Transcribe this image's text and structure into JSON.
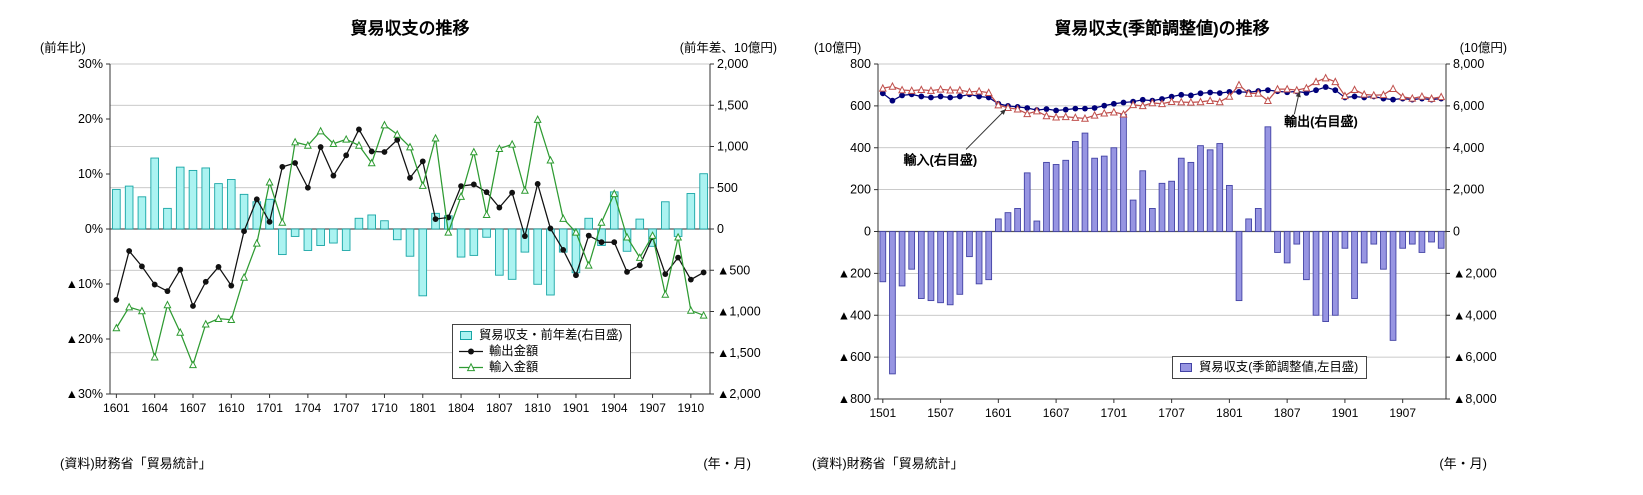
{
  "chart_data": [
    {
      "type": "bar",
      "subtype": "combo-bar-line-dual-axis",
      "title": "貿易収支の推移",
      "source": "(資料)財務省「貿易統計」",
      "x_axis_note": "(年・月)",
      "x_tick_every": 3,
      "grid_axis": "right",
      "left_axis": {
        "label": "(前年比)",
        "min": -30,
        "max": 30,
        "tick_values": [
          30,
          20,
          10,
          0,
          -10,
          -20,
          -30
        ],
        "tick_labels": [
          "30%",
          "20%",
          "10%",
          "0%",
          "▲10%",
          "▲20%",
          "▲30%"
        ]
      },
      "right_axis": {
        "label": "(前年差、10億円)",
        "min": -2000,
        "max": 2000,
        "tick_values": [
          2000,
          1500,
          1000,
          500,
          0,
          -500,
          -1000,
          -1500,
          -2000
        ],
        "tick_labels": [
          "2,000",
          "1,500",
          "1,000",
          "500",
          "0",
          "▲500",
          "▲1,000",
          "▲1,500",
          "▲2,000"
        ]
      },
      "categories": [
        "1601",
        "1602",
        "1603",
        "1604",
        "1605",
        "1606",
        "1607",
        "1608",
        "1609",
        "1610",
        "1611",
        "1612",
        "1701",
        "1702",
        "1703",
        "1704",
        "1705",
        "1706",
        "1707",
        "1708",
        "1709",
        "1710",
        "1711",
        "1712",
        "1801",
        "1802",
        "1803",
        "1804",
        "1805",
        "1806",
        "1807",
        "1808",
        "1809",
        "1810",
        "1811",
        "1812",
        "1901",
        "1902",
        "1903",
        "1904",
        "1905",
        "1906",
        "1907",
        "1908",
        "1909",
        "1910",
        "1911"
      ],
      "series": [
        {
          "id": "balance-diff",
          "name": "貿易収支・前年差(右目盛)",
          "type": "bar",
          "axis": "right",
          "fill": "#abf3f1",
          "stroke": "#18a5a5",
          "values": [
            480,
            520,
            390,
            860,
            250,
            750,
            710,
            740,
            550,
            600,
            420,
            330,
            360,
            -310,
            -90,
            -260,
            -200,
            -170,
            -260,
            130,
            170,
            100,
            -130,
            -330,
            -810,
            190,
            160,
            -340,
            -320,
            -100,
            -560,
            -610,
            -280,
            -670,
            -800,
            -280,
            -530,
            130,
            -200,
            450,
            -270,
            120,
            -210,
            330,
            -90,
            430,
            670
          ]
        },
        {
          "id": "exports",
          "name": "輸出金額",
          "type": "line",
          "axis": "left",
          "color": "#111111",
          "marker": "circle",
          "values": [
            -12.9,
            -4.0,
            -6.8,
            -10.1,
            -11.3,
            -7.4,
            -14.0,
            -9.6,
            -6.9,
            -10.3,
            -0.4,
            5.4,
            1.3,
            11.3,
            12.0,
            7.5,
            14.9,
            9.7,
            13.4,
            18.1,
            14.1,
            14.0,
            16.2,
            9.3,
            12.3,
            1.8,
            2.1,
            7.8,
            8.1,
            6.7,
            3.9,
            6.6,
            -1.3,
            8.2,
            0.1,
            -3.8,
            -8.4,
            -1.2,
            -2.4,
            -2.4,
            -7.8,
            -6.6,
            -1.5,
            -8.2,
            -5.2,
            -9.2,
            -7.9
          ]
        },
        {
          "id": "imports",
          "name": "輸入金額",
          "type": "line",
          "axis": "left",
          "color": "#2e9b32",
          "marker": "triangle",
          "values": [
            -18.0,
            -14.2,
            -14.9,
            -23.3,
            -13.8,
            -18.8,
            -24.7,
            -17.3,
            -16.3,
            -16.5,
            -8.8,
            -2.6,
            8.5,
            1.2,
            15.8,
            15.2,
            17.8,
            15.5,
            16.3,
            15.2,
            12.0,
            18.9,
            17.2,
            14.9,
            7.9,
            16.5,
            -0.6,
            5.9,
            14.0,
            2.6,
            14.6,
            15.4,
            7.0,
            19.9,
            12.5,
            1.9,
            -0.6,
            -6.6,
            1.2,
            6.4,
            -1.5,
            -5.2,
            -1.2,
            -11.9,
            -1.5,
            -14.8,
            -15.7
          ]
        }
      ]
    },
    {
      "type": "bar",
      "subtype": "combo-bar-line-dual-axis",
      "title": "貿易収支(季節調整値)の推移",
      "source": "(資料)財務省「貿易統計」",
      "x_axis_note": "(年・月)",
      "x_tick_every": 6,
      "grid_axis": "left",
      "left_axis": {
        "label": "(10億円)",
        "min": -800,
        "max": 800,
        "tick_values": [
          800,
          600,
          400,
          200,
          0,
          -200,
          -400,
          -600,
          -800
        ],
        "tick_labels": [
          "800",
          "600",
          "400",
          "200",
          "0",
          "▲200",
          "▲400",
          "▲600",
          "▲800"
        ]
      },
      "right_axis": {
        "label": "(10億円)",
        "min": -8000,
        "max": 8000,
        "tick_values": [
          8000,
          6000,
          4000,
          2000,
          0,
          -2000,
          -4000,
          -6000,
          -8000
        ],
        "tick_labels": [
          "8,000",
          "6,000",
          "4,000",
          "2,000",
          "0",
          "▲2,000",
          "▲4,000",
          "▲6,000",
          "▲8,000"
        ]
      },
      "categories": [
        "1501",
        "1502",
        "1503",
        "1504",
        "1505",
        "1506",
        "1507",
        "1508",
        "1509",
        "1510",
        "1511",
        "1512",
        "1601",
        "1602",
        "1603",
        "1604",
        "1605",
        "1606",
        "1607",
        "1608",
        "1609",
        "1610",
        "1611",
        "1612",
        "1701",
        "1702",
        "1703",
        "1704",
        "1705",
        "1706",
        "1707",
        "1708",
        "1709",
        "1710",
        "1711",
        "1712",
        "1801",
        "1802",
        "1803",
        "1804",
        "1805",
        "1806",
        "1807",
        "1808",
        "1809",
        "1810",
        "1811",
        "1812",
        "1901",
        "1902",
        "1903",
        "1904",
        "1905",
        "1906",
        "1907",
        "1908",
        "1909",
        "1910",
        "1911"
      ],
      "series": [
        {
          "id": "balance-sa",
          "name": "貿易収支(季節調整値,左目盛)",
          "type": "bar",
          "axis": "left",
          "fill": "#9795e2",
          "stroke": "#4343a5",
          "values": [
            -240,
            -680,
            -260,
            -180,
            -320,
            -330,
            -340,
            -350,
            -300,
            -120,
            -250,
            -230,
            60,
            90,
            110,
            280,
            50,
            330,
            320,
            340,
            430,
            470,
            350,
            360,
            400,
            560,
            150,
            290,
            110,
            230,
            240,
            350,
            330,
            410,
            390,
            420,
            220,
            -330,
            60,
            110,
            500,
            -100,
            -150,
            -60,
            -230,
            -400,
            -430,
            -400,
            -80,
            -320,
            -150,
            -60,
            -180,
            -520,
            -80,
            -60,
            -100,
            -50,
            -80
          ]
        },
        {
          "id": "exports-sa",
          "name": "輸出(右目盛)",
          "type": "line",
          "axis": "right",
          "legend": false,
          "color": "#00007a",
          "marker": "circle",
          "values": [
            6600,
            6250,
            6500,
            6550,
            6450,
            6400,
            6450,
            6400,
            6450,
            6550,
            6450,
            6400,
            6100,
            6000,
            5950,
            5900,
            5800,
            5850,
            5780,
            5820,
            5870,
            5870,
            5900,
            6010,
            6100,
            6160,
            6200,
            6290,
            6250,
            6330,
            6440,
            6530,
            6500,
            6600,
            6640,
            6610,
            6670,
            6670,
            6650,
            6710,
            6750,
            6700,
            6650,
            6690,
            6620,
            6750,
            6900,
            6750,
            6400,
            6450,
            6400,
            6450,
            6350,
            6300,
            6350,
            6300,
            6350,
            6300,
            6350
          ]
        },
        {
          "id": "imports-sa",
          "name": "輸入(右目盛)",
          "type": "line",
          "axis": "right",
          "legend": false,
          "color": "#c0504d",
          "marker": "triangle",
          "values": [
            6840,
            6930,
            6760,
            6730,
            6770,
            6730,
            6790,
            6750,
            6750,
            6670,
            6700,
            6630,
            6040,
            5910,
            5840,
            5620,
            5750,
            5520,
            5460,
            5480,
            5440,
            5400,
            5550,
            5650,
            5700,
            5600,
            6050,
            6000,
            6140,
            6100,
            6200,
            6180,
            6170,
            6190,
            6250,
            6190,
            6450,
            7000,
            6590,
            6600,
            6250,
            6800,
            6800,
            6750,
            6850,
            7150,
            7330,
            7150,
            6480,
            6770,
            6550,
            6510,
            6530,
            6820,
            6430,
            6360,
            6450,
            6350,
            6430
          ]
        }
      ],
      "annotations": [
        {
          "text": "輸入(右目盛)",
          "text_x": 0.045,
          "text_y": 0.3,
          "from_x": 0.155,
          "from_y": 0.255,
          "to_x": 0.225,
          "to_y": 0.135
        },
        {
          "text": "輸出(右目盛)",
          "text_x": 0.715,
          "text_y": 0.185,
          "from_x": 0.733,
          "from_y": 0.15,
          "to_x": 0.742,
          "to_y": 0.082
        }
      ]
    }
  ]
}
